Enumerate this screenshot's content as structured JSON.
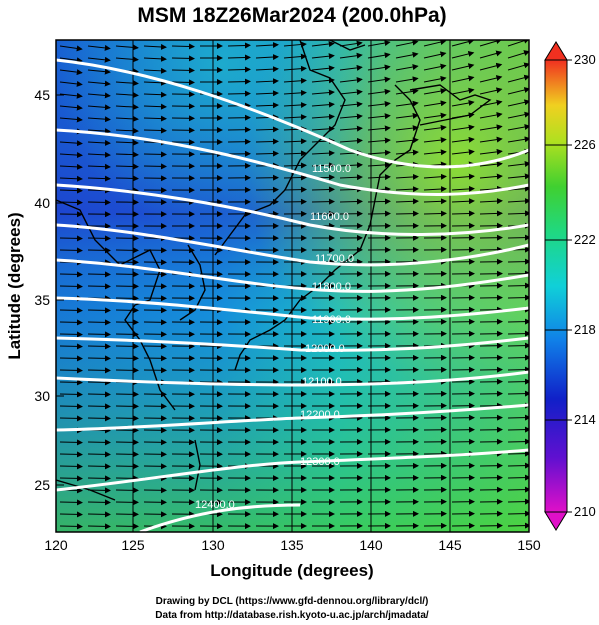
{
  "title": "MSM 18Z26Mar2024 (200.0hPa)",
  "axes": {
    "xlabel": "Longitude (degrees)",
    "ylabel": "Latitude  (degrees)",
    "x_ticks": [
      "120",
      "125",
      "130",
      "135",
      "140",
      "145",
      "150"
    ],
    "y_ticks": [
      "25",
      "30",
      "35",
      "40",
      "45"
    ]
  },
  "colorbar": {
    "min": 210,
    "max": 230,
    "labels": [
      "230",
      "226",
      "222",
      "218",
      "214",
      "210"
    ]
  },
  "contours": [
    {
      "label": "11500.0"
    },
    {
      "label": "11600.0"
    },
    {
      "label": "11700.0"
    },
    {
      "label": "11800.0"
    },
    {
      "label": "11900.0"
    },
    {
      "label": "12000.0"
    },
    {
      "label": "12100.0"
    },
    {
      "label": "12200.0"
    },
    {
      "label": "12300.0"
    },
    {
      "label": "12400.0"
    }
  ],
  "footer": {
    "line1": "Drawing by DCL (https://www.gfd-dennou.org/library/dcl/)",
    "line2": "Data from http://database.rish.kyoto-u.ac.jp/arch/jmadata/"
  },
  "chart_data": {
    "type": "heatmap",
    "title": "MSM 18Z26Mar2024 (200.0hPa)",
    "xlabel": "Longitude (degrees)",
    "ylabel": "Latitude  (degrees)",
    "xlim": [
      120,
      150
    ],
    "ylim": [
      22.5,
      47.6
    ],
    "color_range": [
      210,
      230
    ],
    "contour_levels": [
      11500,
      11600,
      11700,
      11800,
      11900,
      12000,
      12100,
      12200,
      12300,
      12400
    ],
    "vectors": "wind arrows pointing mostly eastward",
    "colors": {
      "cold": "#1a1acc",
      "mid": "#00c8d8",
      "warm": "#6fd84a",
      "hot": "#c8e81a"
    }
  }
}
